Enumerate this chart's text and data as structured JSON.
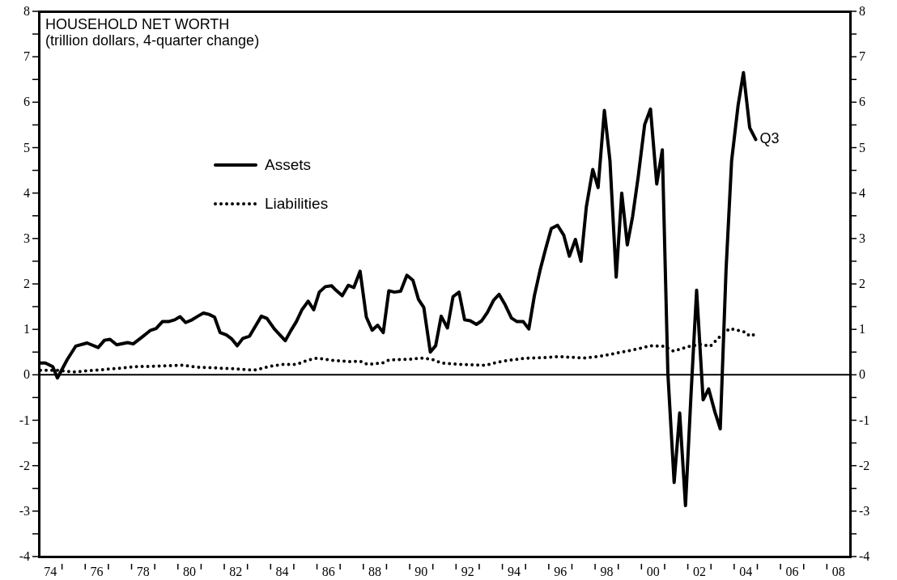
{
  "chart_data": {
    "type": "line",
    "title": "HOUSEHOLD NET WORTH",
    "subtitle": "(trillion dollars, 4-quarter change)",
    "series": [
      {
        "name": "Assets",
        "color": "#000000",
        "line_style": "solid",
        "x": [
          1973.57,
          1973.78,
          1974.1,
          1974.3,
          1974.73,
          1975.09,
          1975.58,
          1976.06,
          1976.33,
          1976.57,
          1976.86,
          1977.33,
          1977.57,
          1978.0,
          1978.32,
          1978.56,
          1978.83,
          1979.09,
          1979.36,
          1979.59,
          1979.83,
          1980.07,
          1980.36,
          1980.6,
          1980.84,
          1981.08,
          1981.32,
          1981.58,
          1981.82,
          1982.06,
          1982.3,
          1982.59,
          1983.1,
          1983.34,
          1983.66,
          1984.13,
          1984.37,
          1984.61,
          1984.85,
          1985.12,
          1985.36,
          1985.6,
          1985.86,
          1986.13,
          1986.32,
          1986.59,
          1986.85,
          1987.09,
          1987.36,
          1987.63,
          1987.88,
          1988.12,
          1988.36,
          1988.6,
          1988.84,
          1989.11,
          1989.38,
          1989.64,
          1989.88,
          1990.11,
          1990.39,
          1990.62,
          1990.86,
          1991.13,
          1991.37,
          1991.63,
          1991.87,
          1992.11,
          1992.38,
          1992.61,
          1992.85,
          1993.12,
          1993.36,
          1993.62,
          1993.89,
          1994.13,
          1994.4,
          1994.64,
          1994.88,
          1995.13,
          1995.37,
          1995.61,
          1995.88,
          1996.15,
          1996.39,
          1996.65,
          1996.89,
          1997.12,
          1997.4,
          1997.63,
          1997.9,
          1998.14,
          1998.41,
          1998.65,
          1998.89,
          1999.12,
          1999.36,
          1999.64,
          1999.89,
          2000.16,
          2000.4,
          2000.64,
          2000.91,
          2001.15,
          2001.4,
          2001.64,
          2001.88,
          2002.16,
          2002.4,
          2002.67,
          2002.9,
          2003.15,
          2003.39,
          2003.67,
          2003.9,
          2004.17,
          2004.43
        ],
        "values": [
          0.26,
          0.26,
          0.18,
          -0.07,
          0.34,
          0.63,
          0.7,
          0.6,
          0.76,
          0.78,
          0.66,
          0.71,
          0.68,
          0.85,
          0.98,
          1.02,
          1.17,
          1.17,
          1.21,
          1.28,
          1.15,
          1.2,
          1.29,
          1.36,
          1.33,
          1.27,
          0.93,
          0.88,
          0.79,
          0.64,
          0.8,
          0.85,
          1.29,
          1.24,
          1.01,
          0.75,
          0.97,
          1.17,
          1.43,
          1.62,
          1.43,
          1.82,
          1.94,
          1.96,
          1.86,
          1.74,
          1.97,
          1.92,
          2.28,
          1.27,
          0.98,
          1.09,
          0.93,
          1.85,
          1.82,
          1.84,
          2.19,
          2.08,
          1.66,
          1.48,
          0.5,
          0.64,
          1.29,
          1.03,
          1.72,
          1.82,
          1.21,
          1.19,
          1.11,
          1.19,
          1.37,
          1.64,
          1.77,
          1.54,
          1.25,
          1.17,
          1.17,
          1.01,
          1.74,
          2.31,
          2.78,
          3.22,
          3.29,
          3.07,
          2.61,
          2.98,
          2.5,
          3.69,
          4.52,
          4.12,
          5.82,
          4.72,
          2.15,
          4.0,
          2.86,
          3.49,
          4.36,
          5.51,
          5.85,
          4.2,
          4.95,
          0.03,
          -2.37,
          -0.84,
          -2.88,
          -0.42,
          1.86,
          -0.55,
          -0.31,
          -0.82,
          -1.19,
          2.31,
          4.71,
          5.93,
          6.65,
          5.44,
          5.18
        ]
      },
      {
        "name": "Liabilities",
        "color": "#000000",
        "line_style": "dotted",
        "x": [
          1973.57,
          1974.3,
          1974.97,
          1975.6,
          1976.65,
          1977.68,
          1978.64,
          1979.75,
          1980.3,
          1981.19,
          1981.98,
          1982.78,
          1983.41,
          1984.06,
          1984.61,
          1985.09,
          1985.51,
          1986.13,
          1986.88,
          1987.36,
          1987.68,
          1988.32,
          1988.63,
          1989.43,
          1990.07,
          1990.46,
          1990.86,
          1991.66,
          1992.77,
          1993.41,
          1994.37,
          1995.32,
          1995.96,
          1997.07,
          1997.87,
          1998.25,
          1999.05,
          1999.92,
          2000.48,
          2000.88,
          2001.51,
          2002.07,
          2002.47,
          2002.87,
          2003.31,
          2003.98,
          2004.17,
          2004.43
        ],
        "values": [
          0.1,
          0.1,
          0.06,
          0.09,
          0.13,
          0.18,
          0.19,
          0.21,
          0.17,
          0.15,
          0.13,
          0.1,
          0.18,
          0.23,
          0.23,
          0.32,
          0.37,
          0.32,
          0.29,
          0.3,
          0.23,
          0.26,
          0.33,
          0.34,
          0.37,
          0.34,
          0.26,
          0.23,
          0.21,
          0.29,
          0.36,
          0.38,
          0.4,
          0.37,
          0.42,
          0.46,
          0.54,
          0.64,
          0.63,
          0.52,
          0.62,
          0.67,
          0.63,
          0.83,
          1.02,
          0.94,
          0.85,
          0.9
        ]
      }
    ],
    "annotations": [
      {
        "text": "Q3",
        "x": 2004.43,
        "y": 5.18
      }
    ],
    "ref_lines": [
      {
        "axis": "y",
        "value": 0
      }
    ],
    "xlim": [
      1973.5,
      2008.5
    ],
    "xticks": [
      {
        "value": 1974,
        "label": "74"
      },
      {
        "value": 1974.5,
        "label": null
      },
      {
        "value": 1975.5,
        "label": null
      },
      {
        "value": 1976,
        "label": "76"
      },
      {
        "value": 1976.5,
        "label": null
      },
      {
        "value": 1977.5,
        "label": null
      },
      {
        "value": 1978,
        "label": "78"
      },
      {
        "value": 1978.5,
        "label": null
      },
      {
        "value": 1979.5,
        "label": null
      },
      {
        "value": 1980,
        "label": "80"
      },
      {
        "value": 1980.5,
        "label": null
      },
      {
        "value": 1981.5,
        "label": null
      },
      {
        "value": 1982,
        "label": "82"
      },
      {
        "value": 1982.5,
        "label": null
      },
      {
        "value": 1983.5,
        "label": null
      },
      {
        "value": 1984,
        "label": "84"
      },
      {
        "value": 1984.5,
        "label": null
      },
      {
        "value": 1985.5,
        "label": null
      },
      {
        "value": 1986,
        "label": "86"
      },
      {
        "value": 1986.5,
        "label": null
      },
      {
        "value": 1987.5,
        "label": null
      },
      {
        "value": 1988,
        "label": "88"
      },
      {
        "value": 1988.5,
        "label": null
      },
      {
        "value": 1989.5,
        "label": null
      },
      {
        "value": 1990,
        "label": "90"
      },
      {
        "value": 1990.5,
        "label": null
      },
      {
        "value": 1991.5,
        "label": null
      },
      {
        "value": 1992,
        "label": "92"
      },
      {
        "value": 1992.5,
        "label": null
      },
      {
        "value": 1993.5,
        "label": null
      },
      {
        "value": 1994,
        "label": "94"
      },
      {
        "value": 1994.5,
        "label": null
      },
      {
        "value": 1995.5,
        "label": null
      },
      {
        "value": 1996,
        "label": "96"
      },
      {
        "value": 1996.5,
        "label": null
      },
      {
        "value": 1997.5,
        "label": null
      },
      {
        "value": 1998,
        "label": "98"
      },
      {
        "value": 1998.5,
        "label": null
      },
      {
        "value": 1999.5,
        "label": null
      },
      {
        "value": 2000,
        "label": "00"
      },
      {
        "value": 2000.5,
        "label": null
      },
      {
        "value": 2001.5,
        "label": null
      },
      {
        "value": 2002,
        "label": "02"
      },
      {
        "value": 2002.5,
        "label": null
      },
      {
        "value": 2003.5,
        "label": null
      },
      {
        "value": 2004,
        "label": "04"
      },
      {
        "value": 2004.5,
        "label": null
      },
      {
        "value": 2005.5,
        "label": null
      },
      {
        "value": 2006,
        "label": "06"
      },
      {
        "value": 2006.5,
        "label": null
      },
      {
        "value": 2007.5,
        "label": null
      },
      {
        "value": 2008,
        "label": "08"
      }
    ],
    "ylim": [
      -4,
      8
    ],
    "yticks": [
      -4,
      {
        "value": -3.5,
        "label": null
      },
      -3,
      {
        "value": -2.5,
        "label": null
      },
      -2,
      {
        "value": -1.5,
        "label": null
      },
      -1,
      {
        "value": -0.5,
        "label": null
      },
      0,
      {
        "value": 0.5,
        "label": null
      },
      1,
      {
        "value": 1.5,
        "label": null
      },
      2,
      {
        "value": 2.5,
        "label": null
      },
      3,
      {
        "value": 3.5,
        "label": null
      },
      4,
      {
        "value": 4.5,
        "label": null
      },
      5,
      {
        "value": 5.5,
        "label": null
      },
      6,
      {
        "value": 6.5,
        "label": null
      },
      7,
      {
        "value": 7.5,
        "label": null
      },
      8
    ],
    "y2lim": [
      -4,
      8
    ],
    "y2ticks": [
      -4,
      {
        "value": -3.5,
        "label": null
      },
      -3,
      {
        "value": -2.5,
        "label": null
      },
      -2,
      {
        "value": -1.5,
        "label": null
      },
      -1,
      {
        "value": -0.5,
        "label": null
      },
      0,
      {
        "value": 0.5,
        "label": null
      },
      1,
      {
        "value": 1.5,
        "label": null
      },
      2,
      {
        "value": 2.5,
        "label": null
      },
      3,
      {
        "value": 3.5,
        "label": null
      },
      4,
      {
        "value": 4.5,
        "label": null
      },
      5,
      {
        "value": 5.5,
        "label": null
      },
      6,
      {
        "value": 6.5,
        "label": null
      },
      7,
      {
        "value": 7.5,
        "label": null
      },
      8
    ],
    "grid": false,
    "legend": "top left",
    "marker": "none"
  }
}
